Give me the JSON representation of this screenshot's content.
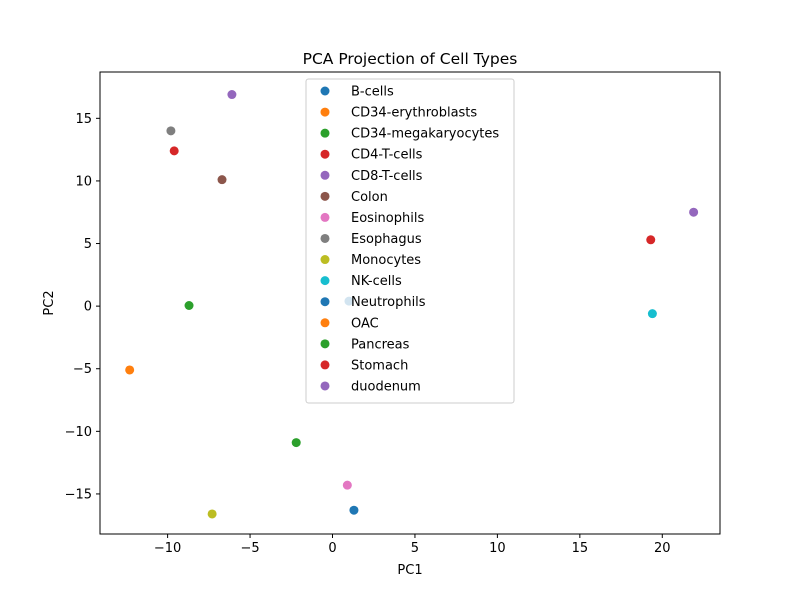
{
  "chart_data": {
    "type": "scatter",
    "title": "PCA Projection of Cell Types",
    "xlabel": "PC1",
    "ylabel": "PC2",
    "xlim": [
      -14.1,
      23.5
    ],
    "ylim": [
      -18.2,
      18.7
    ],
    "xticks": [
      -10,
      -5,
      0,
      5,
      10,
      15,
      20
    ],
    "yticks": [
      -15,
      -10,
      -5,
      0,
      5,
      10,
      15
    ],
    "xtick_labels": [
      "−10",
      "−5",
      "0",
      "5",
      "10",
      "15",
      "20"
    ],
    "ytick_labels": [
      "−15",
      "−10",
      "−5",
      "0",
      "5",
      "10",
      "15"
    ],
    "grid": false,
    "legend_position": "upper-center",
    "series": [
      {
        "name": "B-cells",
        "color": "#1f77b4",
        "x": [
          1.3
        ],
        "y": [
          -16.3
        ]
      },
      {
        "name": "CD34-erythroblasts",
        "color": "#ff7f0e",
        "x": [
          -12.3
        ],
        "y": [
          -5.1
        ]
      },
      {
        "name": "CD34-megakaryocytes",
        "color": "#2ca02c",
        "x": [
          -2.2
        ],
        "y": [
          -10.9
        ]
      },
      {
        "name": "CD4-T-cells",
        "color": "#d62728",
        "x": [
          19.3
        ],
        "y": [
          5.3
        ]
      },
      {
        "name": "CD8-T-cells",
        "color": "#9467bd",
        "x": [
          21.9
        ],
        "y": [
          7.5
        ]
      },
      {
        "name": "Colon",
        "color": "#8c564b",
        "x": [
          -6.7
        ],
        "y": [
          10.1
        ]
      },
      {
        "name": "Eosinophils",
        "color": "#e377c2",
        "x": [
          0.9
        ],
        "y": [
          -14.3
        ]
      },
      {
        "name": "Esophagus",
        "color": "#7f7f7f",
        "x": [
          -9.8
        ],
        "y": [
          14.0
        ]
      },
      {
        "name": "Monocytes",
        "color": "#bcbd22",
        "x": [
          -7.3
        ],
        "y": [
          -16.6
        ]
      },
      {
        "name": "NK-cells",
        "color": "#17becf",
        "x": [
          19.4
        ],
        "y": [
          -0.6
        ]
      },
      {
        "name": "Neutrophils",
        "color": "#1f77b4",
        "x": [
          1.0
        ],
        "y": [
          0.4
        ]
      },
      {
        "name": "OAC",
        "color": "#ff7f0e",
        "x": [],
        "y": []
      },
      {
        "name": "Pancreas",
        "color": "#2ca02c",
        "x": [
          -8.7
        ],
        "y": [
          0.05
        ]
      },
      {
        "name": "Stomach",
        "color": "#d62728",
        "x": [
          -9.6
        ],
        "y": [
          12.4
        ]
      },
      {
        "name": "duodenum",
        "color": "#9467bd",
        "x": [
          -6.1
        ],
        "y": [
          16.9
        ]
      }
    ]
  }
}
